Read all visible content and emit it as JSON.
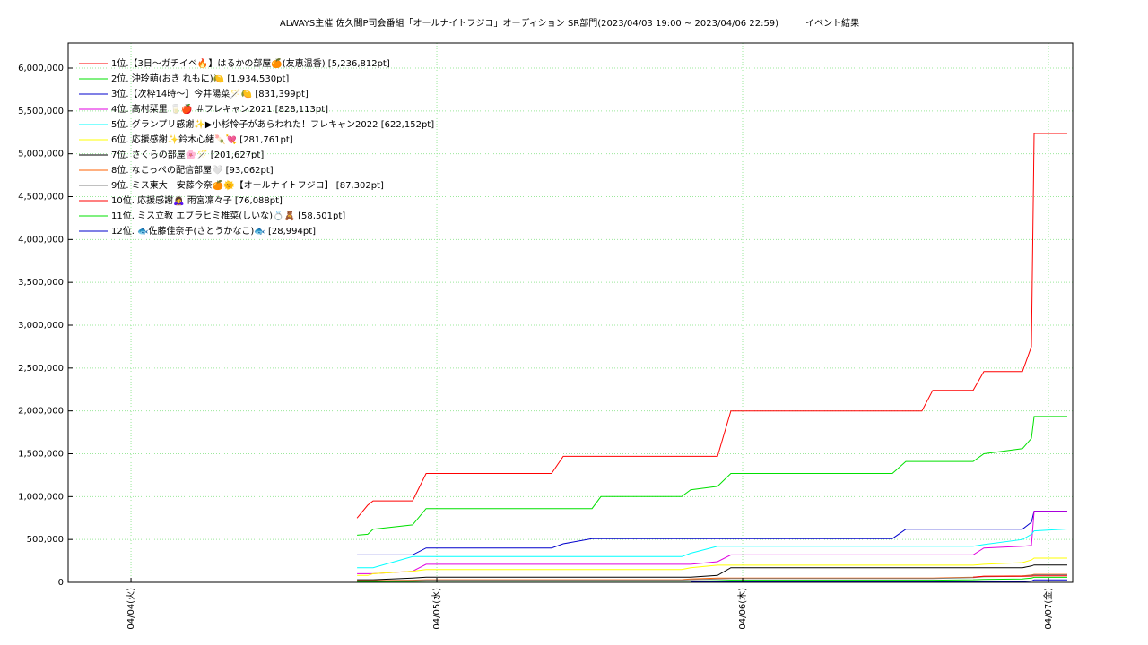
{
  "chart_data": {
    "type": "line",
    "title": "ALWAYS主催 佐久間P司会番組「オールナイトフジコ」オーディション SR部門(2023/04/03 19:00 ~ 2023/04/06 22:59)　　　イベント結果",
    "x": [
      17.74,
      18.58,
      19.0,
      22.1,
      23.16,
      33.01,
      33.92,
      36.18,
      36.88,
      43.21,
      43.92,
      46.03,
      47.08,
      59.75,
      60.81,
      62.07,
      62.92,
      66.09,
      66.93,
      69.96,
      70.66,
      70.87,
      73.48
    ],
    "xlim": [
      -4.93,
      73.9
    ],
    "xticks": [
      {
        "value": 0,
        "label": "04/04(火)"
      },
      {
        "value": 24,
        "label": "04/05(水)"
      },
      {
        "value": 48,
        "label": "04/06(木)"
      },
      {
        "value": 72,
        "label": "04/07(金)"
      }
    ],
    "ylim": [
      0,
      6292700
    ],
    "yticks": [
      0,
      {
        "value": 500000,
        "label": "500,000"
      },
      {
        "value": 1000000,
        "label": "1,000,000"
      },
      {
        "value": 1500000,
        "label": "1,500,000"
      },
      {
        "value": 2000000,
        "label": "2,000,000"
      },
      {
        "value": 2500000,
        "label": "2,500,000"
      },
      {
        "value": 3000000,
        "label": "3,000,000"
      },
      {
        "value": 3500000,
        "label": "3,500,000"
      },
      {
        "value": 4000000,
        "label": "4,000,000"
      },
      {
        "value": 4500000,
        "label": "4,500,000"
      },
      {
        "value": 5000000,
        "label": "5,000,000"
      },
      {
        "value": 5500000,
        "label": "5,500,000"
      },
      {
        "value": 6000000,
        "label": "6,000,000"
      }
    ],
    "grid": true,
    "legend": "upper-left",
    "series": [
      {
        "name": "1位.【3日〜ガチイベ🔥】はるかの部屋🍊(友恵温香) [5,236,812pt]",
        "color": "#ff0000",
        "values": [
          750000,
          900000,
          950000,
          950000,
          1270000,
          1270000,
          1470000,
          1470000,
          1470000,
          1470000,
          1470000,
          1470000,
          2000000,
          2000000,
          2000000,
          2000000,
          2240000,
          2240000,
          2460000,
          2460000,
          2750000,
          5236812,
          5236812
        ]
      },
      {
        "name": "2位. 沖玲萌(おき れもに)🍋 [1,934,530pt]",
        "color": "#00e000",
        "values": [
          550000,
          560000,
          620000,
          670000,
          860000,
          860000,
          860000,
          860000,
          1000000,
          1000000,
          1080000,
          1120000,
          1270000,
          1270000,
          1410000,
          1410000,
          1410000,
          1410000,
          1500000,
          1560000,
          1680000,
          1934530,
          1934530
        ]
      },
      {
        "name": "3位.【次枠14時〜】今井陽菜🪄🍋 [831,399pt]",
        "color": "#0000cc",
        "values": [
          320000,
          320000,
          320000,
          320000,
          400000,
          400000,
          450000,
          510000,
          510000,
          510000,
          510000,
          510000,
          510000,
          510000,
          620000,
          620000,
          620000,
          620000,
          620000,
          620000,
          700000,
          831399,
          831399
        ]
      },
      {
        "name": "4位. 高村栞里 🥛🍎 ＃フレキャン2021 [828,113pt]",
        "color": "#e000e0",
        "values": [
          100000,
          100000,
          100000,
          130000,
          210000,
          210000,
          210000,
          210000,
          210000,
          210000,
          210000,
          240000,
          320000,
          320000,
          320000,
          320000,
          320000,
          320000,
          400000,
          420000,
          430000,
          828113,
          828113
        ]
      },
      {
        "name": "5位. グランプリ感謝✨▶小杉怜子があらわれた！フレキャン2022 [622,152pt]",
        "color": "#00ffff",
        "values": [
          170000,
          170000,
          170000,
          300000,
          300000,
          300000,
          300000,
          300000,
          300000,
          300000,
          340000,
          420000,
          420000,
          420000,
          420000,
          420000,
          420000,
          420000,
          440000,
          500000,
          560000,
          600000,
          622152
        ]
      },
      {
        "name": "6位. 応援感謝✨鈴木心緒🍡💘 [281,761pt]",
        "color": "#ffff00",
        "values": [
          80000,
          80000,
          100000,
          130000,
          150000,
          150000,
          150000,
          150000,
          150000,
          150000,
          170000,
          200000,
          200000,
          200000,
          200000,
          200000,
          200000,
          200000,
          210000,
          230000,
          260000,
          281761,
          281761
        ]
      },
      {
        "name": "7位. さくらの部屋🌸🪄 [201,627pt]",
        "color": "#000000",
        "values": [
          30000,
          30000,
          30000,
          50000,
          60000,
          60000,
          60000,
          60000,
          60000,
          60000,
          60000,
          80000,
          170000,
          170000,
          170000,
          170000,
          170000,
          170000,
          170000,
          170000,
          190000,
          201627,
          201627
        ]
      },
      {
        "name": "8位. なこっぺの配信部屋🤍 [93,062pt]",
        "color": "#ff6000",
        "values": [
          20000,
          20000,
          20000,
          25000,
          30000,
          30000,
          30000,
          30000,
          30000,
          30000,
          40000,
          50000,
          50000,
          50000,
          50000,
          50000,
          50000,
          60000,
          70000,
          75000,
          85000,
          93062,
          93062
        ]
      },
      {
        "name": "9位. ミス東大　安藤今奈🍊🌞【オールナイトフジコ】 [87,302pt]",
        "color": "#808080",
        "values": [
          15000,
          15000,
          15000,
          20000,
          25000,
          25000,
          25000,
          25000,
          25000,
          25000,
          30000,
          40000,
          45000,
          45000,
          45000,
          45000,
          45000,
          55000,
          65000,
          70000,
          80000,
          87302,
          87302
        ]
      },
      {
        "name": "10位. 応援感謝🙇‍♀️ 雨宮凜々子 [76,088pt]",
        "color": "#ff0000",
        "values": [
          null,
          null,
          null,
          null,
          null,
          null,
          null,
          null,
          null,
          null,
          null,
          null,
          null,
          null,
          null,
          null,
          null,
          60000,
          70000,
          70000,
          72000,
          76088,
          76088
        ]
      },
      {
        "name": "11位. ミス立教 エブラヒミ椎菜(しいな)💍🧸 [58,501pt]",
        "color": "#00e000",
        "values": [
          10000,
          10000,
          10000,
          12000,
          15000,
          15000,
          15000,
          15000,
          15000,
          15000,
          15000,
          20000,
          25000,
          25000,
          25000,
          25000,
          25000,
          30000,
          35000,
          40000,
          50000,
          58501,
          58501
        ]
      },
      {
        "name": "12位. 🐟佐藤佳奈子(さとうかなこ)🐟 [28,994pt]",
        "color": "#0000cc",
        "values": [
          null,
          null,
          null,
          null,
          null,
          null,
          null,
          null,
          null,
          null,
          5000,
          5000,
          5000,
          5000,
          5000,
          5000,
          5000,
          5000,
          5000,
          8000,
          15000,
          28994,
          28994
        ]
      }
    ]
  }
}
